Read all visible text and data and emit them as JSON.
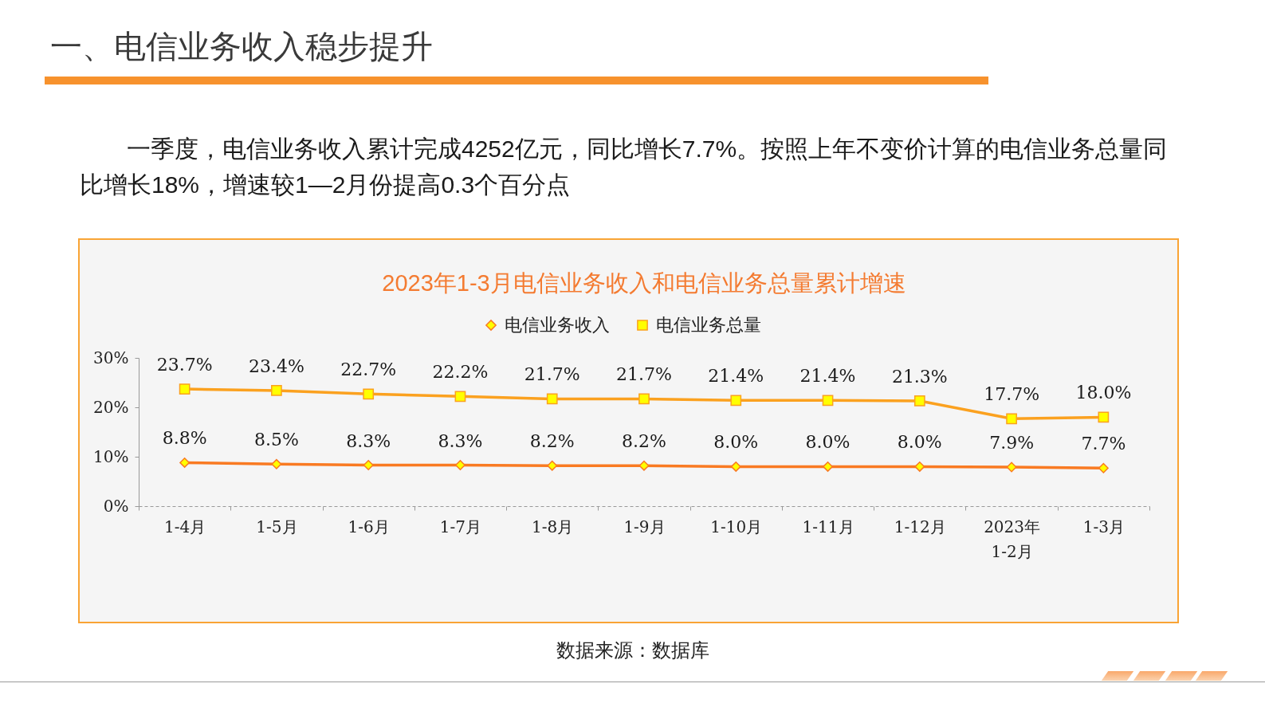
{
  "chart_data": {
    "type": "line",
    "title": "2023年1-3月电信业务收入和电信业务总量累计增速",
    "categories": [
      "1-4月",
      "1-5月",
      "1-6月",
      "1-7月",
      "1-8月",
      "1-9月",
      "1-10月",
      "1-11月",
      "1-12月",
      "2023年\n1-2月",
      "1-3月"
    ],
    "series": [
      {
        "name": "电信业务收入",
        "color": "#f97a22",
        "marker": "diamond",
        "values": [
          8.8,
          8.5,
          8.3,
          8.3,
          8.2,
          8.2,
          8.0,
          8.0,
          8.0,
          7.9,
          7.7
        ],
        "value_labels": [
          "8.8%",
          "8.5%",
          "8.3%",
          "8.3%",
          "8.2%",
          "8.2%",
          "8.0%",
          "8.0%",
          "8.0%",
          "7.9%",
          "7.7%"
        ]
      },
      {
        "name": "电信业务总量",
        "color": "#fba11f",
        "marker": "square",
        "values": [
          23.7,
          23.4,
          22.7,
          22.2,
          21.7,
          21.7,
          21.4,
          21.4,
          21.3,
          17.7,
          18.0
        ],
        "value_labels": [
          "23.7%",
          "23.4%",
          "22.7%",
          "22.2%",
          "21.7%",
          "21.7%",
          "21.4%",
          "21.4%",
          "21.3%",
          "17.7%",
          "18.0%"
        ]
      }
    ],
    "ylim": [
      0,
      30
    ],
    "yticks": [
      {
        "value": 0,
        "label": "0%"
      },
      {
        "value": 10,
        "label": "10%"
      },
      {
        "value": 20,
        "label": "20%"
      },
      {
        "value": 30,
        "label": "30%"
      }
    ],
    "grid": false,
    "legend": "top",
    "line_style": "solid",
    "annotations": [
      "一、电信业务收入稳步提升",
      "一季度，电信业务收入累计完成4252亿元，同比增长7.7%。按照上年不变价计算的电信业务总量同比增长18%，增速较1—2月份提高0.3个百分点",
      "数据来源：数据库"
    ]
  }
}
